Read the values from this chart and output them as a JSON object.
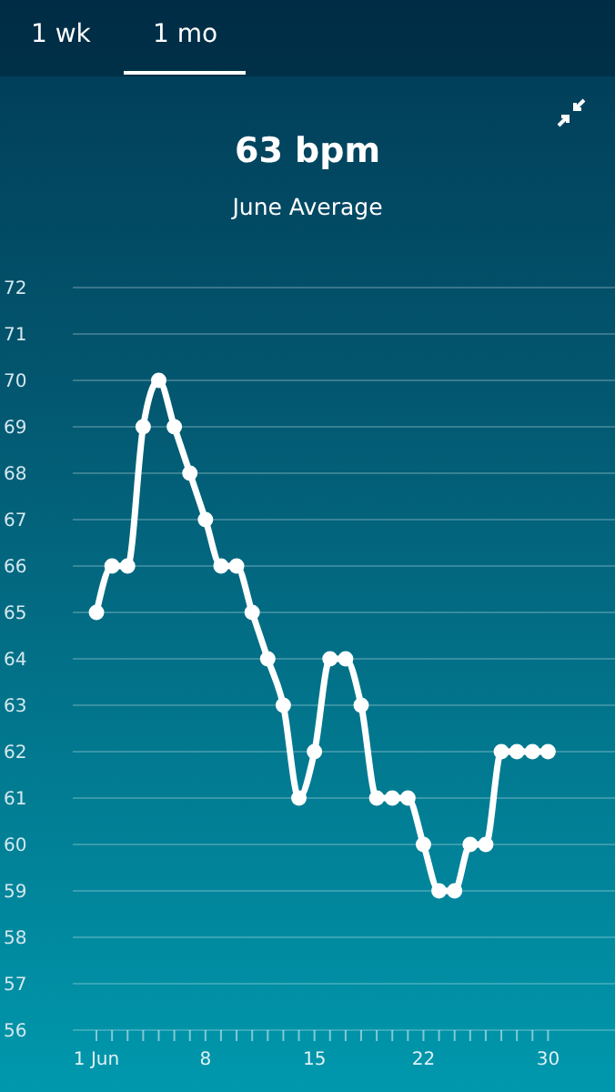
{
  "chart_data": {
    "type": "line",
    "title": "63 bpm",
    "subtitle": "June Average",
    "annotations": [
      "1 wk",
      "1 mo"
    ],
    "categories": [
      "1 Jun",
      null,
      null,
      null,
      null,
      null,
      null,
      "8",
      null,
      null,
      null,
      null,
      null,
      null,
      "15",
      null,
      null,
      null,
      null,
      null,
      null,
      "22",
      null,
      null,
      null,
      null,
      null,
      null,
      null,
      "30"
    ],
    "series": [
      {
        "color": "#ffffff",
        "values": [
          65,
          66,
          66,
          69,
          70,
          69,
          68,
          67,
          66,
          66,
          65,
          64,
          63,
          61,
          62,
          64,
          64,
          63,
          61,
          61,
          61,
          60,
          59,
          59,
          60,
          60,
          62,
          62,
          62,
          62
        ]
      }
    ],
    "ylim": [
      56,
      72
    ],
    "yticks": [
      56,
      57,
      58,
      59,
      60,
      61,
      62,
      63,
      64,
      65,
      66,
      67,
      68,
      69,
      70,
      71,
      72
    ],
    "grid": "y",
    "marker": "circle",
    "line_style": "solid",
    "legend": false
  }
}
